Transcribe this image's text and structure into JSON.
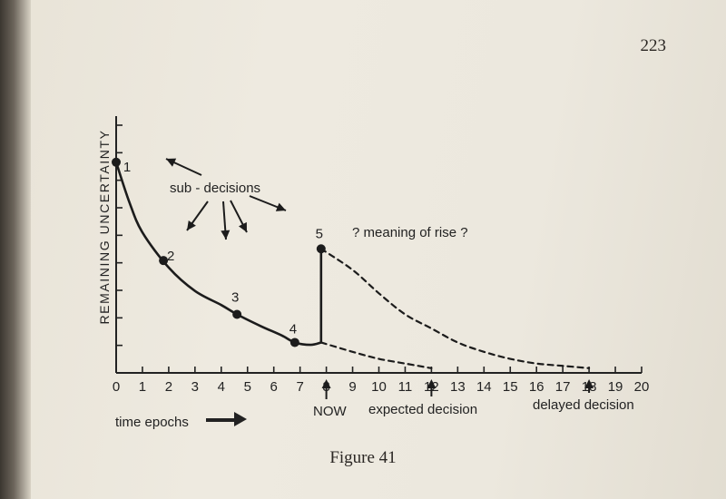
{
  "page_number": "223",
  "caption": "Figure 41",
  "chart_data": {
    "type": "line",
    "ylabel": "REMAINING UNCERTAINTY",
    "xlabel": "time epochs",
    "xlim": [
      0,
      20
    ],
    "ylim": [
      0,
      10
    ],
    "x_ticks": [
      "0",
      "1",
      "2",
      "3",
      "4",
      "5",
      "6",
      "7",
      "8",
      "9",
      "10",
      "11",
      "12",
      "13",
      "14",
      "15",
      "16",
      "17",
      "18",
      "19",
      "20"
    ],
    "series": [
      {
        "style": "solid",
        "points": [
          [
            0,
            9
          ],
          [
            0.5,
            7.3
          ],
          [
            1,
            6.0
          ],
          [
            2,
            4.5
          ],
          [
            3,
            3.5
          ],
          [
            4,
            2.9
          ],
          [
            4.6,
            2.5
          ],
          [
            5.5,
            2.0
          ],
          [
            6.3,
            1.6
          ],
          [
            6.8,
            1.3
          ],
          [
            7.4,
            1.2
          ],
          [
            7.8,
            1.3
          ],
          [
            7.8,
            4.1
          ],
          [
            7.8,
            5.3
          ]
        ]
      },
      {
        "style": "dashed",
        "points": [
          [
            7.8,
            5.3
          ],
          [
            9,
            4.4
          ],
          [
            10,
            3.4
          ],
          [
            11,
            2.5
          ],
          [
            12,
            1.9
          ],
          [
            13,
            1.3
          ],
          [
            14,
            0.9
          ],
          [
            15,
            0.6
          ],
          [
            16,
            0.4
          ],
          [
            17,
            0.3
          ],
          [
            18,
            0.2
          ]
        ]
      },
      {
        "style": "dashed",
        "points": [
          [
            7.8,
            1.3
          ],
          [
            9,
            0.9
          ],
          [
            10,
            0.6
          ],
          [
            11,
            0.4
          ],
          [
            12,
            0.2
          ]
        ]
      }
    ],
    "points": [
      {
        "label": "1",
        "x": 0,
        "y": 9
      },
      {
        "label": "2",
        "x": 1.8,
        "y": 4.8
      },
      {
        "label": "3",
        "x": 4.6,
        "y": 2.5
      },
      {
        "label": "4",
        "x": 6.8,
        "y": 1.3
      },
      {
        "label": "5",
        "x": 7.8,
        "y": 5.3
      }
    ],
    "annotations": {
      "sub_decisions": "sub - decisions",
      "meaning_of_rise": "? meaning of rise ?",
      "now": "NOW",
      "expected_decision": "expected decision",
      "delayed_decision": "delayed decision"
    },
    "markers": [
      {
        "name": "now",
        "x": 8
      },
      {
        "name": "expected",
        "x": 12
      },
      {
        "name": "delayed",
        "x": 18
      }
    ]
  }
}
